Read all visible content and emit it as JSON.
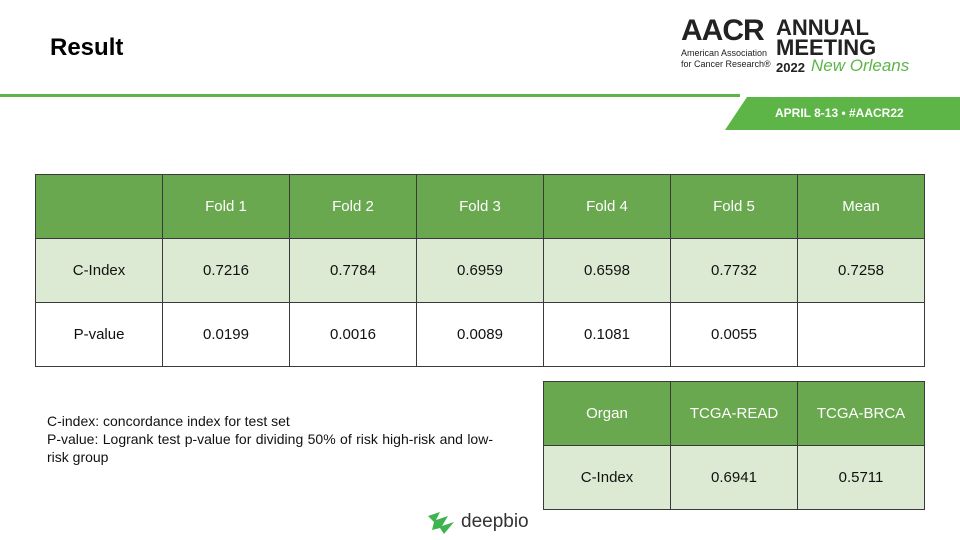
{
  "header": {
    "title": "Result",
    "logo": {
      "acronym": "AACR",
      "organization_line_1": "American Association",
      "organization_line_2": "for Cancer Research®",
      "event_line_1": "ANNUAL",
      "event_line_2": "MEETING",
      "year": "2022",
      "city": "New Orleans",
      "dates": "APRIL 8-13 • #AACR22"
    }
  },
  "table": {
    "columns": [
      "Fold 1",
      "Fold 2",
      "Fold 3",
      "Fold 4",
      "Fold 5",
      "Mean"
    ],
    "rows": [
      [
        "C-Index",
        "0.7216",
        "0.7784",
        "0.6959",
        "0.6598",
        "0.7732",
        "0.7258"
      ],
      [
        "P-value",
        "0.0199",
        "0.0016",
        "0.0089",
        "0.1081",
        "0.0055"
      ]
    ]
  },
  "notes": [
    "C-index:  concordance  index  for test set",
    "P-value:  Logrank  test  p-value  for dividing  50% of risk high-risk and low-risk group"
  ],
  "organ_table": {
    "columns": [
      "Organ",
      "TCGA-READ",
      "TCGA-BRCA"
    ],
    "rows": [
      [
        "C-Index",
        "0.6941",
        "0.5711"
      ]
    ]
  },
  "footer": {
    "brand": "deepbio"
  }
}
